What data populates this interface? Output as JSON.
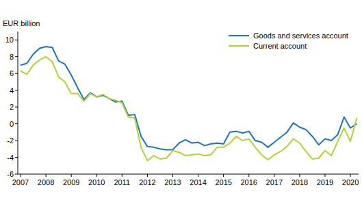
{
  "chart_data": {
    "type": "line",
    "y_label": "EUR billion",
    "categories": [
      "2007",
      null,
      null,
      null,
      "2008",
      null,
      null,
      null,
      "2009",
      null,
      null,
      null,
      "2010",
      null,
      null,
      null,
      "2011",
      null,
      null,
      null,
      "2012",
      null,
      null,
      null,
      "2013",
      null,
      null,
      null,
      "2014",
      null,
      null,
      null,
      "2015",
      null,
      null,
      null,
      "2016",
      null,
      null,
      null,
      "2017",
      null,
      null,
      null,
      "2018",
      null,
      null,
      null,
      "2019",
      null,
      null,
      null,
      "2020",
      null
    ],
    "series": [
      {
        "name": "Goods and services account",
        "color": "#1b75bb",
        "values": [
          7.0,
          7.2,
          8.3,
          9.0,
          9.2,
          9.1,
          7.5,
          7.1,
          5.8,
          4.3,
          2.9,
          3.7,
          3.2,
          3.4,
          3.0,
          2.6,
          2.7,
          1.0,
          1.1,
          -1.5,
          -2.7,
          -2.8,
          -3.0,
          -3.1,
          -3.1,
          -2.3,
          -1.9,
          -2.3,
          -2.2,
          -2.6,
          -2.4,
          -2.3,
          -2.4,
          -1.0,
          -0.9,
          -1.1,
          -0.9,
          -2.0,
          -2.2,
          -2.8,
          -2.2,
          -1.6,
          -1.0,
          0.1,
          -0.4,
          -0.7,
          -1.5,
          -2.5,
          -1.8,
          -2.0,
          -1.3,
          0.8,
          -0.5,
          0.0
        ]
      },
      {
        "name": "Current account",
        "color": "#b3d335",
        "values": [
          6.3,
          5.9,
          7.0,
          7.6,
          8.0,
          7.4,
          5.6,
          5.0,
          3.6,
          3.6,
          2.7,
          3.6,
          3.2,
          3.5,
          3.0,
          2.8,
          2.5,
          0.8,
          0.7,
          -2.8,
          -4.4,
          -3.8,
          -4.2,
          -4.1,
          -3.2,
          -3.4,
          -3.8,
          -3.7,
          -3.6,
          -3.8,
          -3.7,
          -2.8,
          -2.8,
          -2.3,
          -1.5,
          -2.0,
          -1.8,
          -2.8,
          -3.7,
          -4.3,
          -3.7,
          -3.3,
          -2.7,
          -1.8,
          -2.3,
          -3.3,
          -4.2,
          -4.1,
          -3.2,
          -3.8,
          -2.1,
          -0.5,
          -2.1,
          0.7
        ]
      }
    ],
    "ylim": [
      -6,
      11
    ],
    "yticks": [
      -6,
      -4,
      -2,
      0,
      2,
      4,
      6,
      8,
      10
    ],
    "grid": false,
    "legend": "upper right"
  }
}
